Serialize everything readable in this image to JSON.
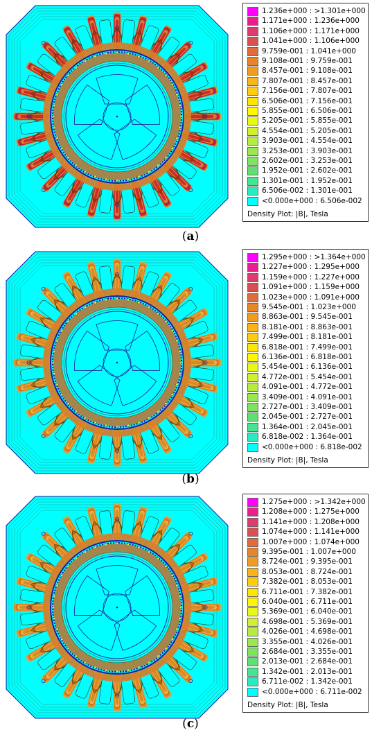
{
  "panels": [
    {
      "caption_letter": "a",
      "legend_footer": "Density Plot: |B|, Tesla",
      "legend": [
        {
          "range": "1.236e+000 : >1.301e+000",
          "color": "#ff00ff"
        },
        {
          "range": "1.171e+000 : 1.236e+000",
          "color": "#e8208c"
        },
        {
          "range": "1.106e+000 : 1.171e+000",
          "color": "#dc3c6e"
        },
        {
          "range": "1.041e+000 : 1.106e+000",
          "color": "#d85050"
        },
        {
          "range": "9.759e-001 : 1.041e+000",
          "color": "#e06c3c"
        },
        {
          "range": "9.108e-001 : 9.759e-001",
          "color": "#e8842a"
        },
        {
          "range": "8.457e-001 : 9.108e-001",
          "color": "#f09c20"
        },
        {
          "range": "7.807e-001 : 8.457e-001",
          "color": "#f8b418"
        },
        {
          "range": "7.156e-001 : 7.807e-001",
          "color": "#ffcc10"
        },
        {
          "range": "6.506e-001 : 7.156e-001",
          "color": "#ffe408"
        },
        {
          "range": "5.855e-001 : 6.506e-001",
          "color": "#fff800"
        },
        {
          "range": "5.205e-001 : 5.855e-001",
          "color": "#e8f818"
        },
        {
          "range": "4.554e-001 : 5.205e-001",
          "color": "#d0f030"
        },
        {
          "range": "3.903e-001 : 4.554e-001",
          "color": "#b4ec40"
        },
        {
          "range": "3.253e-001 : 3.903e-001",
          "color": "#98e850"
        },
        {
          "range": "2.602e-001 : 3.253e-001",
          "color": "#7ce460"
        },
        {
          "range": "1.952e-001 : 2.602e-001",
          "color": "#60e070"
        },
        {
          "range": "1.301e-001 : 1.952e-001",
          "color": "#44e490"
        },
        {
          "range": "6.506e-002 : 1.301e-001",
          "color": "#28ecc0"
        },
        {
          "range": "<0.000e+000 : 6.506e-002",
          "color": "#00ffff"
        }
      ]
    },
    {
      "caption_letter": "b",
      "legend_footer": "Density Plot: |B|, Tesla",
      "legend": [
        {
          "range": "1.295e+000 : >1.364e+000",
          "color": "#ff00ff"
        },
        {
          "range": "1.227e+000 : 1.295e+000",
          "color": "#e8208c"
        },
        {
          "range": "1.159e+000 : 1.227e+000",
          "color": "#dc3c6e"
        },
        {
          "range": "1.091e+000 : 1.159e+000",
          "color": "#d85050"
        },
        {
          "range": "1.023e+000 : 1.091e+000",
          "color": "#e06c3c"
        },
        {
          "range": "9.545e-001 : 1.023e+000",
          "color": "#e8842a"
        },
        {
          "range": "8.863e-001 : 9.545e-001",
          "color": "#f09c20"
        },
        {
          "range": "8.181e-001 : 8.863e-001",
          "color": "#f8b418"
        },
        {
          "range": "7.499e-001 : 8.181e-001",
          "color": "#ffcc10"
        },
        {
          "range": "6.818e-001 : 7.499e-001",
          "color": "#ffe408"
        },
        {
          "range": "6.136e-001 : 6.818e-001",
          "color": "#fff800"
        },
        {
          "range": "5.454e-001 : 6.136e-001",
          "color": "#e8f818"
        },
        {
          "range": "4.772e-001 : 5.454e-001",
          "color": "#d0f030"
        },
        {
          "range": "4.091e-001 : 4.772e-001",
          "color": "#b4ec40"
        },
        {
          "range": "3.409e-001 : 4.091e-001",
          "color": "#98e850"
        },
        {
          "range": "2.727e-001 : 3.409e-001",
          "color": "#7ce460"
        },
        {
          "range": "2.045e-001 : 2.727e-001",
          "color": "#60e070"
        },
        {
          "range": "1.364e-001 : 2.045e-001",
          "color": "#44e490"
        },
        {
          "range": "6.818e-002 : 1.364e-001",
          "color": "#28ecc0"
        },
        {
          "range": "<0.000e+000 : 6.818e-002",
          "color": "#00ffff"
        }
      ]
    },
    {
      "caption_letter": "c",
      "legend_footer": "Density Plot: |B|, Tesla",
      "legend": [
        {
          "range": "1.275e+000 : >1.342e+000",
          "color": "#ff00ff"
        },
        {
          "range": "1.208e+000 : 1.275e+000",
          "color": "#e8208c"
        },
        {
          "range": "1.141e+000 : 1.208e+000",
          "color": "#dc3c6e"
        },
        {
          "range": "1.074e+000 : 1.141e+000",
          "color": "#d85050"
        },
        {
          "range": "1.007e+000 : 1.074e+000",
          "color": "#e06c3c"
        },
        {
          "range": "9.395e-001 : 1.007e+000",
          "color": "#e8842a"
        },
        {
          "range": "8.724e-001 : 9.395e-001",
          "color": "#f09c20"
        },
        {
          "range": "8.053e-001 : 8.724e-001",
          "color": "#f8b418"
        },
        {
          "range": "7.382e-001 : 8.053e-001",
          "color": "#ffcc10"
        },
        {
          "range": "6.711e-001 : 7.382e-001",
          "color": "#ffe408"
        },
        {
          "range": "6.040e-001 : 6.711e-001",
          "color": "#fff800"
        },
        {
          "range": "5.369e-001 : 6.040e-001",
          "color": "#e8f818"
        },
        {
          "range": "4.698e-001 : 5.369e-001",
          "color": "#d0f030"
        },
        {
          "range": "4.026e-001 : 4.698e-001",
          "color": "#b4ec40"
        },
        {
          "range": "3.355e-001 : 4.026e-001",
          "color": "#98e850"
        },
        {
          "range": "2.684e-001 : 3.355e-001",
          "color": "#7ce460"
        },
        {
          "range": "2.013e-001 : 2.684e-001",
          "color": "#60e070"
        },
        {
          "range": "1.342e-001 : 2.013e-001",
          "color": "#44e490"
        },
        {
          "range": "6.711e-002 : 1.342e-001",
          "color": "#28ecc0"
        },
        {
          "range": "<0.000e+000 : 6.711e-002",
          "color": "#00ffff"
        }
      ]
    }
  ],
  "colors": {
    "air": "#00ffff",
    "outline": "#1a1aa0",
    "contour": "#5a3000"
  }
}
